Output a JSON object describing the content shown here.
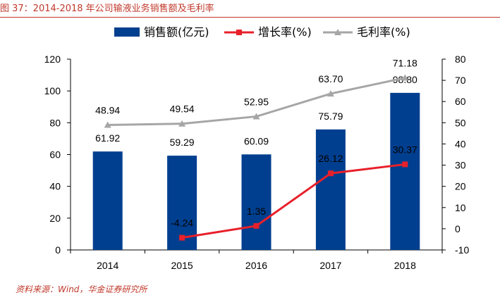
{
  "caption": "图 37：2014-2018 年公司输液业务销售额及毛利率",
  "source": "资料来源：Wind，华金证券研究所",
  "colors": {
    "bar": "#003f8f",
    "growth": "#e8202a",
    "margin": "#a6a6a6",
    "caption": "#c0392b"
  },
  "chart_data": {
    "type": "bar",
    "categories": [
      "2014",
      "2015",
      "2016",
      "2017",
      "2018"
    ],
    "series": [
      {
        "name": "销售额(亿元)",
        "type": "bar",
        "axis": "left",
        "values": [
          61.92,
          59.29,
          60.09,
          75.79,
          98.8
        ]
      },
      {
        "name": "增长率(%)",
        "type": "line",
        "axis": "right",
        "marker": "square",
        "values": [
          null,
          -4.24,
          1.35,
          26.12,
          30.37
        ]
      },
      {
        "name": "毛利率(%)",
        "type": "line",
        "axis": "right",
        "marker": "triangle",
        "values": [
          48.94,
          49.54,
          52.95,
          63.7,
          71.18
        ]
      }
    ],
    "value_labels": {
      "bar": [
        "61.92",
        "59.29",
        "60.09",
        "75.79",
        "98.80"
      ],
      "growth": [
        "",
        "-4.24",
        "1.35",
        "26.12",
        "30.37"
      ],
      "margin": [
        "48.94",
        "49.54",
        "52.95",
        "63.70",
        "71.18"
      ]
    },
    "yleft": {
      "min": 0,
      "max": 120,
      "ticks": [
        "0",
        "20",
        "40",
        "60",
        "80",
        "100",
        "120"
      ]
    },
    "yright": {
      "min": -10,
      "max": 80,
      "ticks": [
        "-10",
        "0",
        "10",
        "20",
        "30",
        "40",
        "50",
        "60",
        "70",
        "80"
      ]
    },
    "legend_position": "top",
    "grid": false
  }
}
